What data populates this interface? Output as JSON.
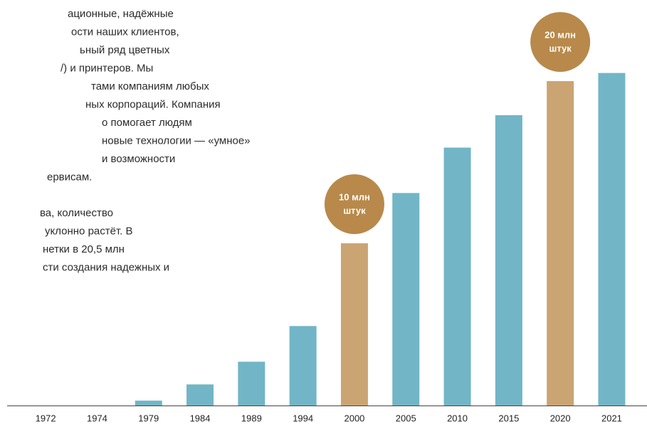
{
  "chart_data": {
    "type": "bar",
    "categories": [
      "1972",
      "1974",
      "1979",
      "1984",
      "1989",
      "1994",
      "2000",
      "2005",
      "2010",
      "2015",
      "2020",
      "2021"
    ],
    "values": [
      0,
      0,
      0.3,
      1.3,
      2.7,
      4.9,
      10,
      13.1,
      15.9,
      17.9,
      20,
      20.5
    ],
    "colors": [
      "#72b5c6",
      "#72b5c6",
      "#72b5c6",
      "#72b5c6",
      "#72b5c6",
      "#72b5c6",
      "#cba474",
      "#72b5c6",
      "#72b5c6",
      "#72b5c6",
      "#cba474",
      "#72b5c6"
    ],
    "ylim": [
      0,
      25
    ],
    "annotations": [
      {
        "category": "2000",
        "lines": [
          "10 млн",
          "штук"
        ],
        "color": "#b8894a"
      },
      {
        "category": "2020",
        "lines": [
          "20 млн",
          "штук"
        ],
        "color": "#b8894a"
      }
    ]
  },
  "text": {
    "paragraphs": [
      [
        "ационные, надёжные",
        "ости наших клиентов,",
        "ьный ряд цветных",
        "/) и принтеров. Мы",
        "тами компаниям любых",
        "ных корпораций. Компания",
        "о помогает людям",
        "новые технологии — «умное»",
        "и возможности",
        "ервисам."
      ],
      [
        "ва, количество",
        "уклонно растёт.  В",
        "нетки в 20,5 млн",
        "сти создания надежных и"
      ]
    ]
  }
}
